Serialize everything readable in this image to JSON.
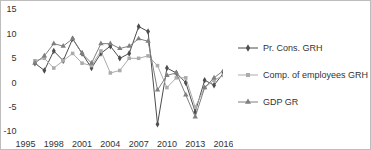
{
  "chart_data": {
    "type": "line",
    "x": [
      1996,
      1997,
      1998,
      1999,
      2000,
      2001,
      2002,
      2003,
      2004,
      2005,
      2006,
      2007,
      2008,
      2009,
      2010,
      2011,
      2012,
      2013,
      2014,
      2015,
      2016
    ],
    "series": [
      {
        "name": "Pr. Cons. GRH",
        "color": "#4d4d4d",
        "marker": "diamond",
        "values": [
          4,
          2.5,
          6.5,
          4.5,
          9,
          6,
          3,
          6,
          7.5,
          5,
          6,
          11.5,
          10.5,
          -8.5,
          3,
          2,
          0,
          -6,
          0.5,
          -0.5,
          2
        ]
      },
      {
        "name": "Comp. of employees GRH",
        "color": "#ababab",
        "marker": "square",
        "values": [
          4.5,
          5,
          3,
          4.5,
          6,
          4,
          3.5,
          6.5,
          2,
          2.5,
          5,
          5,
          5.5,
          3.5,
          -1,
          1,
          1,
          -5,
          -1,
          0.5,
          1.5
        ]
      },
      {
        "name": "GDP GR",
        "color": "#7f7f7f",
        "marker": "triangle",
        "values": [
          4,
          5.5,
          8,
          7.5,
          9,
          6,
          4,
          8,
          8,
          7,
          7.5,
          9,
          8.5,
          -1.5,
          1.5,
          2,
          -2.5,
          -7,
          -1,
          1,
          2.5
        ]
      }
    ],
    "xlim": [
      1995,
      2016
    ],
    "xticks": [
      1995,
      1998,
      2001,
      2004,
      2007,
      2010,
      2013,
      2016
    ],
    "ylim": [
      -10,
      15
    ],
    "yticks": [
      -10,
      -5,
      0,
      5,
      10,
      15
    ],
    "grid": false,
    "legend": "right"
  }
}
